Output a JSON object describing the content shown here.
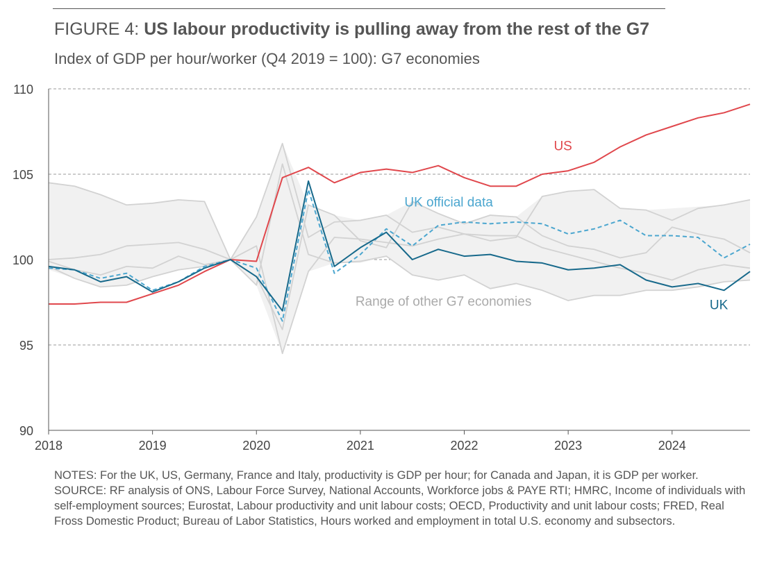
{
  "header": {
    "figure_label": "FIGURE 4: ",
    "title": "US labour productivity is pulling away from the rest of the G7",
    "subtitle": "Index of GDP per hour/worker (Q4 2019 = 100): G7 economies"
  },
  "chart_data": {
    "type": "line",
    "title": "US labour productivity is pulling away from the rest of the G7",
    "ylabel": "Index of GDP per hour/worker (Q4 2019 = 100)",
    "xlabel": "",
    "xlim": [
      2018.0,
      2024.75
    ],
    "ylim": [
      90,
      110
    ],
    "yticks": [
      90,
      95,
      100,
      105,
      110
    ],
    "xticks": [
      2018,
      2019,
      2020,
      2021,
      2022,
      2023,
      2024
    ],
    "grid": true,
    "x": [
      2018.0,
      2018.25,
      2018.5,
      2018.75,
      2019.0,
      2019.25,
      2019.5,
      2019.75,
      2020.0,
      2020.25,
      2020.5,
      2020.75,
      2021.0,
      2021.25,
      2021.5,
      2021.75,
      2022.0,
      2022.25,
      2022.5,
      2022.75,
      2023.0,
      2023.25,
      2023.5,
      2023.75,
      2024.0,
      2024.25,
      2024.5,
      2024.75
    ],
    "series": [
      {
        "name": "US",
        "label": "US",
        "color": "#e0474c",
        "dash": false,
        "values": [
          97.4,
          97.4,
          97.5,
          97.5,
          98.0,
          98.5,
          99.3,
          100.0,
          99.9,
          104.8,
          105.4,
          104.5,
          105.1,
          105.3,
          105.1,
          105.5,
          104.8,
          104.3,
          104.3,
          105.0,
          105.2,
          105.7,
          106.6,
          107.3,
          107.8,
          108.3,
          108.6,
          109.1
        ]
      },
      {
        "name": "UK",
        "label": "UK",
        "color": "#17698b",
        "dash": false,
        "values": [
          99.6,
          99.4,
          98.7,
          99.0,
          98.1,
          98.7,
          99.5,
          100.0,
          99.0,
          97.0,
          104.6,
          99.6,
          100.7,
          101.6,
          100.0,
          100.6,
          100.2,
          100.3,
          99.9,
          99.8,
          99.4,
          99.5,
          99.7,
          98.8,
          98.4,
          98.6,
          98.2,
          99.3
        ]
      },
      {
        "name": "UK official data",
        "label": "UK official data",
        "color": "#4ba6cf",
        "dash": true,
        "values": [
          99.5,
          99.4,
          98.9,
          99.2,
          98.2,
          98.7,
          99.6,
          100.0,
          99.5,
          96.4,
          104.1,
          99.2,
          100.3,
          101.8,
          100.8,
          102.0,
          102.2,
          102.1,
          102.2,
          102.1,
          101.5,
          101.8,
          102.3,
          101.4,
          101.4,
          101.3,
          100.1,
          100.9
        ]
      }
    ],
    "range": {
      "name": "Range of other G7 economies",
      "label": "Range of other G7 economies",
      "color": "#f1f1f1",
      "upper": [
        104.5,
        104.3,
        103.8,
        103.2,
        103.3,
        103.5,
        103.4,
        100.0,
        102.5,
        106.8,
        103.2,
        102.6,
        102.3,
        102.6,
        103.4,
        102.7,
        102.1,
        102.6,
        102.5,
        103.7,
        104.0,
        104.1,
        103.0,
        102.9,
        103.0,
        103.1,
        103.2,
        103.5
      ],
      "lower": [
        99.4,
        98.9,
        98.4,
        98.5,
        99.0,
        99.4,
        99.6,
        100.0,
        98.5,
        94.5,
        99.3,
        99.8,
        99.8,
        100.2,
        99.1,
        98.8,
        99.1,
        98.3,
        98.6,
        98.2,
        97.6,
        97.9,
        97.9,
        98.2,
        98.2,
        98.4,
        98.7,
        98.8
      ]
    },
    "other_g7_lines": [
      {
        "name": "Other G7 economy 1",
        "values": [
          104.5,
          104.3,
          103.8,
          103.2,
          103.3,
          103.5,
          103.4,
          100.0,
          102.5,
          106.8,
          101.3,
          102.2,
          102.3,
          102.6,
          101.6,
          101.9,
          101.5,
          101.1,
          101.3,
          103.7,
          104.0,
          104.1,
          103.0,
          102.9,
          102.3,
          103.0,
          103.2,
          103.5
        ]
      },
      {
        "name": "Other G7 economy 2",
        "values": [
          100.0,
          100.1,
          100.3,
          100.8,
          100.9,
          101.0,
          100.6,
          100.0,
          99.0,
          95.9,
          103.2,
          102.6,
          101.1,
          100.7,
          103.4,
          102.7,
          102.1,
          102.6,
          102.5,
          101.4,
          100.8,
          100.6,
          100.1,
          100.4,
          101.9,
          101.5,
          101.2,
          100.4
        ]
      },
      {
        "name": "Other G7 economy 3",
        "values": [
          99.9,
          99.4,
          99.1,
          99.6,
          99.5,
          100.2,
          99.7,
          100.0,
          100.8,
          94.5,
          99.3,
          101.3,
          101.2,
          101.0,
          100.8,
          101.2,
          101.5,
          101.4,
          101.4,
          100.7,
          100.3,
          99.9,
          99.5,
          99.2,
          98.8,
          99.4,
          99.7,
          99.5
        ]
      },
      {
        "name": "Other G7 economy 4",
        "values": [
          99.6,
          98.9,
          98.4,
          98.5,
          99.0,
          99.4,
          99.6,
          100.0,
          98.5,
          105.6,
          100.3,
          99.8,
          99.9,
          100.2,
          99.1,
          98.8,
          99.1,
          98.3,
          98.6,
          98.2,
          97.6,
          97.9,
          97.9,
          98.2,
          98.2,
          98.4,
          98.7,
          98.8
        ]
      }
    ],
    "annotations": [
      {
        "text": "US",
        "x": 2022.95,
        "y": 106.4,
        "color": "#e0474c"
      },
      {
        "text": "UK official data",
        "x": 2021.85,
        "y": 103.1,
        "color": "#4ba6cf"
      },
      {
        "text": "Range of other G7 economies",
        "x": 2021.8,
        "y": 97.3,
        "color": "#aaaaaa"
      },
      {
        "text": "UK",
        "x": 2024.45,
        "y": 97.1,
        "color": "#17698b"
      }
    ]
  },
  "notes": {
    "notes_text": "NOTES: For the UK, US, Germany, France and Italy, productivity is GDP per hour; for Canada and Japan, it is GDP per worker.",
    "source_text": "SOURCE: RF analysis of ONS, Labour Force Survey, National Accounts, Workforce jobs & PAYE RTI; HMRC, Income of individuals with self-employment sources; Eurostat, Labour productivity and unit labour costs; OECD, Productivity and unit labour costs; FRED, Real Fross Domestic Product; Bureau of Labor Statistics, Hours worked and employment in total U.S. economy and subsectors."
  }
}
